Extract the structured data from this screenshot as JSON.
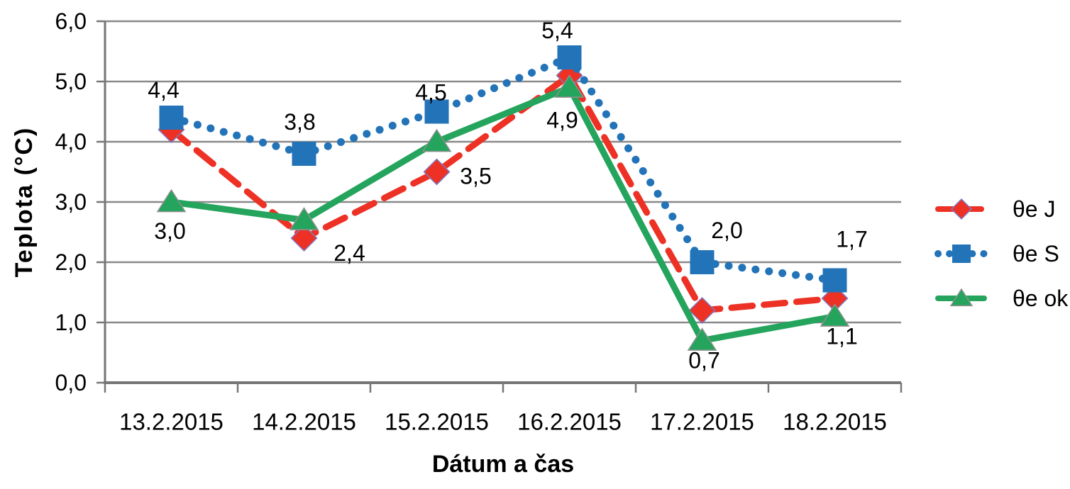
{
  "chart_data": {
    "type": "line",
    "title": "",
    "xlabel": "Dátum a čas",
    "ylabel": "Teplota (°C)",
    "categories": [
      "13.2.2015",
      "14.2.2015",
      "15.2.2015",
      "16.2.2015",
      "17.2.2015",
      "18.2.2015"
    ],
    "y_ticks": [
      "0,0",
      "1,0",
      "2,0",
      "3,0",
      "4,0",
      "5,0",
      "6,0"
    ],
    "ylim": [
      0,
      6
    ],
    "grid": true,
    "legend_position": "right",
    "series": [
      {
        "name": "θe J",
        "color": "#ED3125",
        "line": "dashed",
        "marker": "diamond",
        "marker_outline": "#7C7CC8",
        "values": [
          4.2,
          2.4,
          3.5,
          5.1,
          1.2,
          1.4
        ],
        "labels": [
          null,
          "2,4",
          "3,5",
          null,
          null,
          null
        ],
        "label_offsets": [
          null,
          [
            64,
            21
          ],
          [
            55,
            6
          ],
          null,
          null,
          null
        ]
      },
      {
        "name": "θe S",
        "color": "#2273B8",
        "line": "dotted",
        "marker": "square",
        "marker_outline": "none",
        "values": [
          4.4,
          3.8,
          4.5,
          5.4,
          2.0,
          1.7
        ],
        "labels": [
          "4,4",
          "3,8",
          "4,5",
          "5,4",
          "2,0",
          "1,7"
        ],
        "label_offsets": [
          [
            -11,
            -39
          ],
          [
            -6,
            -45
          ],
          [
            -8,
            -27
          ],
          [
            -17,
            -38
          ],
          [
            35,
            -45
          ],
          [
            24,
            -58
          ]
        ]
      },
      {
        "name": "θe ok",
        "color": "#24A45C",
        "line": "solid",
        "marker": "triangle",
        "marker_outline": "#909090",
        "values": [
          3.0,
          2.7,
          4.0,
          4.9,
          0.7,
          1.1
        ],
        "labels": [
          "3,0",
          null,
          null,
          "4,9",
          "0,7",
          "1,1"
        ],
        "label_offsets": [
          [
            -2,
            41
          ],
          null,
          null,
          [
            -10,
            46
          ],
          [
            3,
            28
          ],
          [
            10,
            28
          ]
        ]
      }
    ]
  },
  "colors": {
    "background": "#FFFFFF",
    "gridline": "#898989",
    "axis": "#767676",
    "text": "#000000"
  }
}
